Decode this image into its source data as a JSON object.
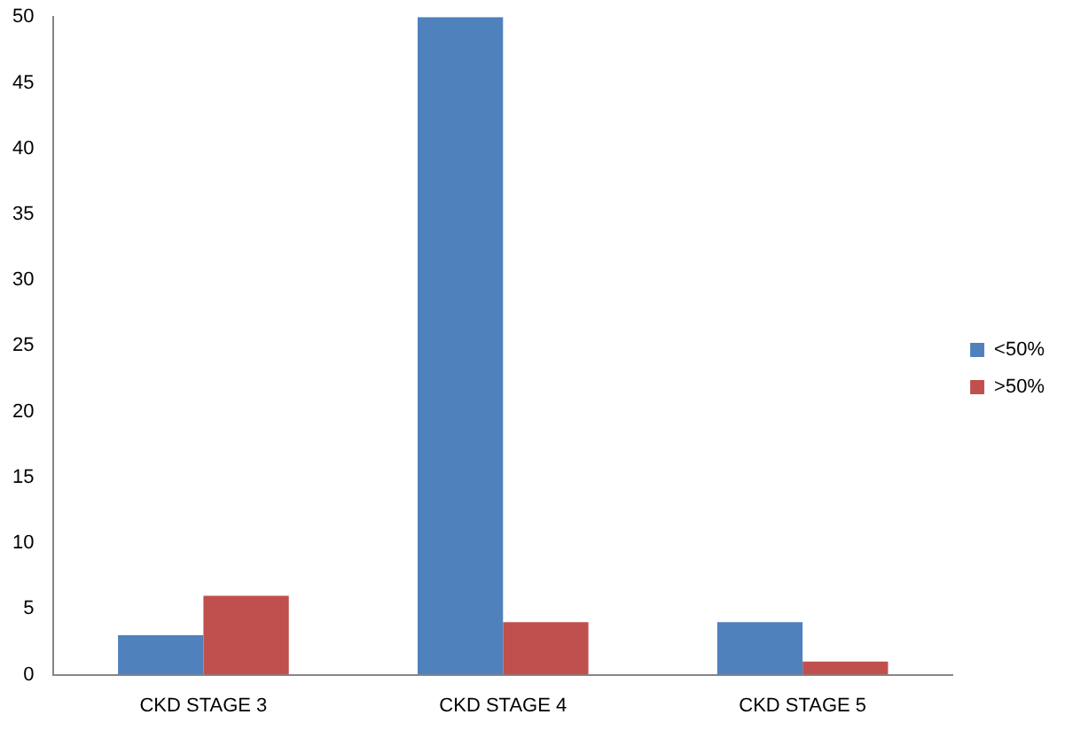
{
  "chart_data": {
    "type": "bar",
    "categories": [
      "CKD STAGE 3",
      "CKD STAGE 4",
      "CKD STAGE 5"
    ],
    "series": [
      {
        "name": "<50%",
        "color": "#4f81bd",
        "values": [
          3,
          50,
          4
        ]
      },
      {
        "name": ">50%",
        "color": "#c0504d",
        "values": [
          6,
          4,
          1
        ]
      }
    ],
    "ylim": [
      0,
      50
    ],
    "yticks": [
      0,
      5,
      10,
      15,
      20,
      25,
      30,
      35,
      40,
      45,
      50
    ],
    "grid": false,
    "legend": "right"
  }
}
